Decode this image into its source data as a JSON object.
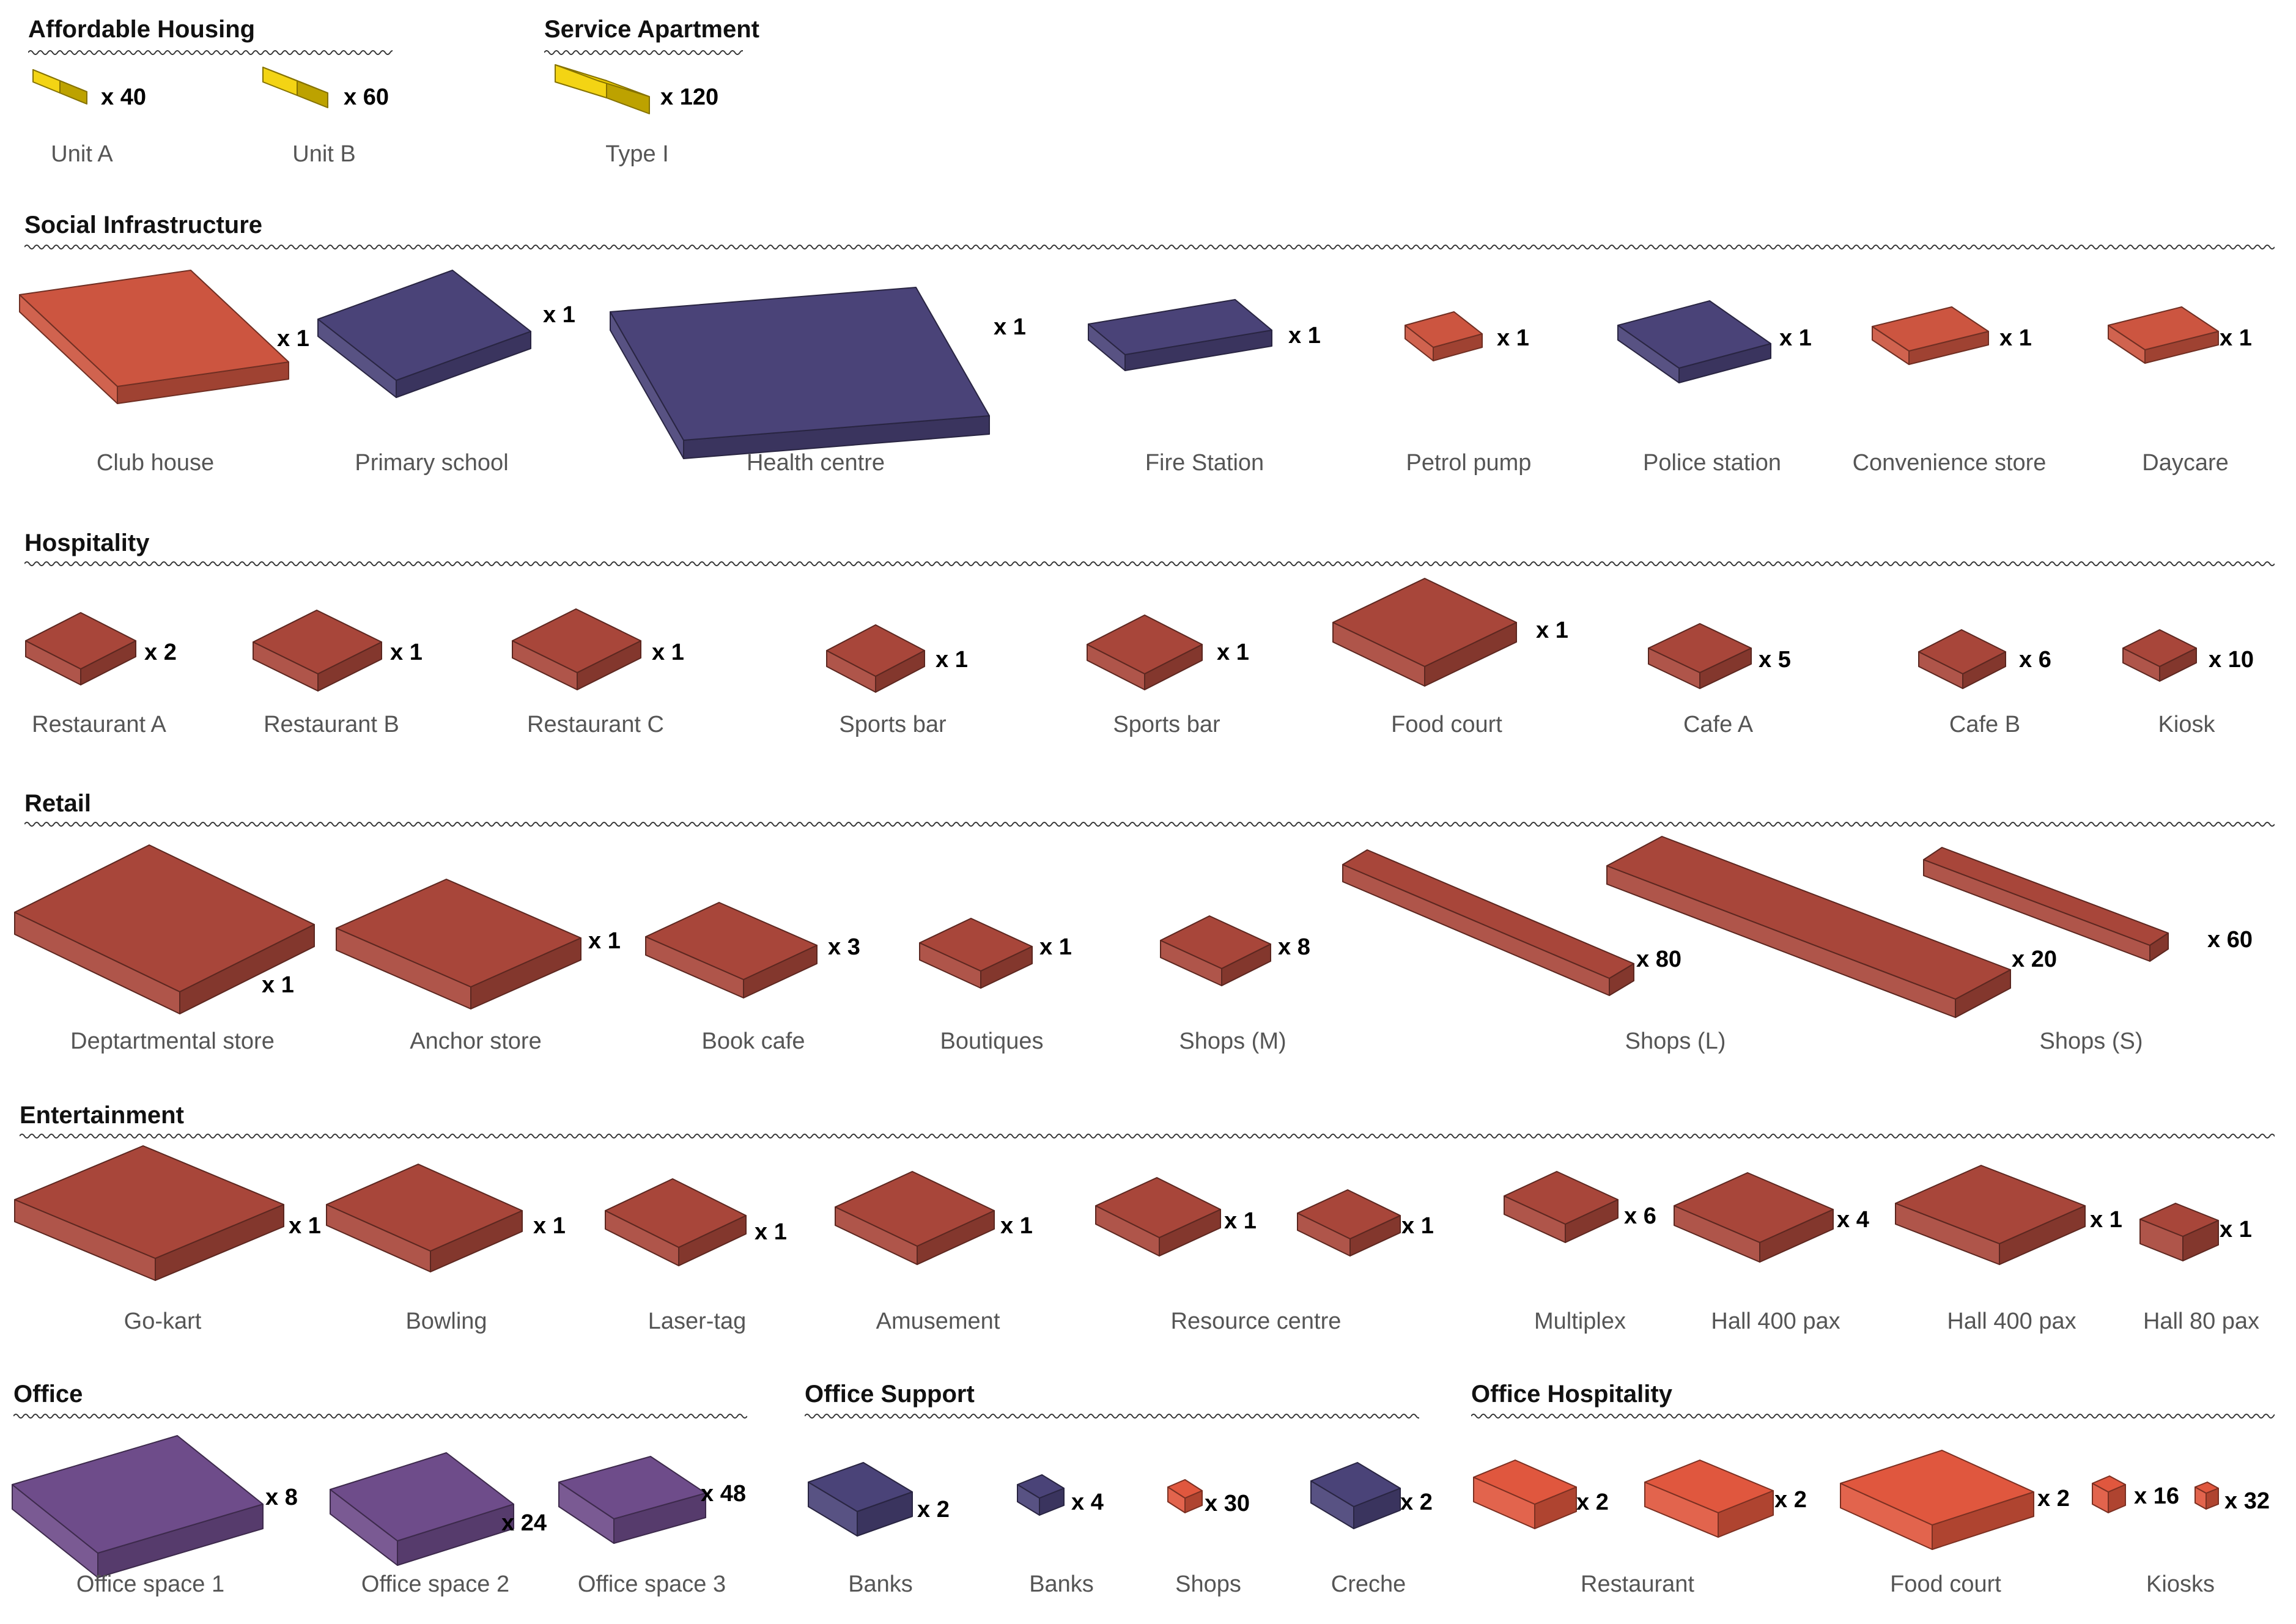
{
  "colors": {
    "housing_yellow": "#f2d000",
    "red": "#cc5540",
    "red_dark": "#a8463a",
    "red_bright": "#e0573e",
    "navy": "#4a4378",
    "purple": "#6e4c8a",
    "title": "#111111",
    "label": "#555555"
  },
  "sections": {
    "affordable_housing": {
      "title": "Affordable Housing",
      "items": [
        {
          "label": "Unit A",
          "count": "x 40",
          "color": "housing_yellow"
        },
        {
          "label": "Unit B",
          "count": "x 60",
          "color": "housing_yellow"
        }
      ]
    },
    "service_apartment": {
      "title": "Service Apartment",
      "items": [
        {
          "label": "Type I",
          "count": "x 120",
          "color": "housing_yellow"
        }
      ]
    },
    "social_infrastructure": {
      "title": "Social Infrastructure",
      "items": [
        {
          "label": "Club house",
          "count": "x 1",
          "color": "red"
        },
        {
          "label": "Primary school",
          "count": "x 1",
          "color": "navy"
        },
        {
          "label": "Health centre",
          "count": "x 1",
          "color": "navy"
        },
        {
          "label": "Fire Station",
          "count": "x 1",
          "color": "navy"
        },
        {
          "label": "Petrol pump",
          "count": "x 1",
          "color": "red"
        },
        {
          "label": "Police station",
          "count": "x 1",
          "color": "navy"
        },
        {
          "label": "Convenience store",
          "count": "x 1",
          "color": "red"
        },
        {
          "label": "Daycare",
          "count": "x 1",
          "color": "red"
        }
      ]
    },
    "hospitality": {
      "title": "Hospitality",
      "items": [
        {
          "label": "Restaurant A",
          "count": "x 2",
          "color": "red_dark"
        },
        {
          "label": "Restaurant B",
          "count": "x 1",
          "color": "red_dark"
        },
        {
          "label": "Restaurant C",
          "count": "x 1",
          "color": "red_dark"
        },
        {
          "label": "Sports bar",
          "count": "x 1",
          "color": "red_dark"
        },
        {
          "label": "Sports bar",
          "count": "x 1",
          "color": "red_dark"
        },
        {
          "label": "Food court",
          "count": "x 1",
          "color": "red_dark"
        },
        {
          "label": "Cafe A",
          "count": "x 5",
          "color": "red_dark"
        },
        {
          "label": "Cafe B",
          "count": "x 6",
          "color": "red_dark"
        },
        {
          "label": "Kiosk",
          "count": "x 10",
          "color": "red_dark"
        }
      ]
    },
    "retail": {
      "title": "Retail",
      "items": [
        {
          "label": "Deptartmental store",
          "count": "x 1",
          "color": "red_dark"
        },
        {
          "label": "Anchor store",
          "count": "x 1",
          "color": "red_dark"
        },
        {
          "label": "Book cafe",
          "count": "x 3",
          "color": "red_dark"
        },
        {
          "label": "Boutiques",
          "count": "x 1",
          "color": "red_dark"
        },
        {
          "label": "Shops (M)",
          "count": "x 8",
          "color": "red_dark"
        },
        {
          "label": "Shops (L)",
          "counts": [
            "x 80",
            "x 20"
          ],
          "color": "red_dark"
        },
        {
          "label": "Shops (S)",
          "count": "x 60",
          "color": "red_dark"
        }
      ]
    },
    "entertainment": {
      "title": "Entertainment",
      "items": [
        {
          "label": "Go-kart",
          "count": "x 1",
          "color": "red_dark"
        },
        {
          "label": "Bowling",
          "count": "x 1",
          "color": "red_dark"
        },
        {
          "label": "Laser-tag",
          "count": "x 1",
          "color": "red_dark"
        },
        {
          "label": "Amusement",
          "count": "x 1",
          "color": "red_dark"
        },
        {
          "label": "Resource centre",
          "counts": [
            "x 1",
            "x 1"
          ],
          "color": "red_dark"
        },
        {
          "label": "Multiplex",
          "count": "x 6",
          "color": "red_dark"
        },
        {
          "label": "Hall 400 pax",
          "count": "x 4",
          "color": "red_dark"
        },
        {
          "label": "Hall 400 pax",
          "count": "x 1",
          "color": "red_dark"
        },
        {
          "label": "Hall 80 pax",
          "count": "x 1",
          "color": "red_dark"
        }
      ]
    },
    "office": {
      "title": "Office",
      "items": [
        {
          "label": "Office space 1",
          "count": "x 8",
          "color": "purple"
        },
        {
          "label": "Office space 2",
          "count": "x 24",
          "color": "purple"
        },
        {
          "label": "Office space 3",
          "count": "x 48",
          "color": "purple"
        }
      ]
    },
    "office_support": {
      "title": "Office Support",
      "items": [
        {
          "label": "Banks",
          "count": "x 2",
          "color": "navy"
        },
        {
          "label": "Banks",
          "count": "x 4",
          "color": "navy"
        },
        {
          "label": "Shops",
          "count": "x 30",
          "color": "red_bright"
        },
        {
          "label": "Creche",
          "count": "x 2",
          "color": "navy"
        }
      ]
    },
    "office_hospitality": {
      "title": "Office Hospitality",
      "items": [
        {
          "label": "Restaurant",
          "counts": [
            "x 2",
            "x 2"
          ],
          "color": "red_bright"
        },
        {
          "label": "Food court",
          "count": "x 2",
          "color": "red_bright"
        },
        {
          "label": "Kiosks",
          "counts": [
            "x 16",
            "x 32"
          ],
          "color": "red_bright"
        }
      ]
    }
  }
}
